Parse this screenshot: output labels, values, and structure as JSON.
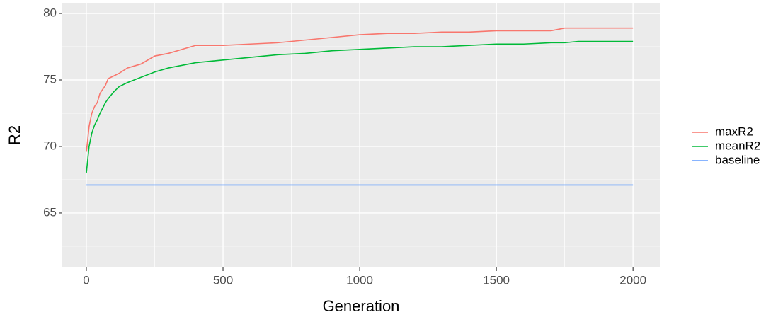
{
  "chart_data": {
    "type": "line",
    "x_label": "Generation",
    "y_label": "R2",
    "x": [
      0,
      5,
      10,
      20,
      30,
      40,
      50,
      60,
      70,
      80,
      100,
      120,
      150,
      200,
      250,
      300,
      350,
      400,
      500,
      600,
      700,
      800,
      900,
      1000,
      1100,
      1200,
      1300,
      1400,
      1500,
      1600,
      1700,
      1750,
      1800,
      1900,
      2000
    ],
    "series": [
      {
        "name": "maxR2",
        "color": "#F8766D",
        "values": [
          69.6,
          70.5,
          71.5,
          72.5,
          73.0,
          73.3,
          74.0,
          74.3,
          74.6,
          75.1,
          75.3,
          75.5,
          75.9,
          76.2,
          76.8,
          77.0,
          77.3,
          77.6,
          77.6,
          77.7,
          77.8,
          78.0,
          78.2,
          78.4,
          78.5,
          78.5,
          78.6,
          78.6,
          78.7,
          78.7,
          78.7,
          78.9,
          78.9,
          78.9,
          78.9
        ]
      },
      {
        "name": "meanR2",
        "color": "#00BA38",
        "values": [
          68.0,
          69.0,
          70.0,
          71.0,
          71.6,
          72.0,
          72.5,
          72.9,
          73.3,
          73.6,
          74.1,
          74.5,
          74.8,
          75.2,
          75.6,
          75.9,
          76.1,
          76.3,
          76.5,
          76.7,
          76.9,
          77.0,
          77.2,
          77.3,
          77.4,
          77.5,
          77.5,
          77.6,
          77.7,
          77.7,
          77.8,
          77.8,
          77.9,
          77.9,
          77.9
        ]
      },
      {
        "name": "baseline",
        "color": "#619CFF",
        "values": [
          67.1,
          67.1,
          67.1,
          67.1,
          67.1,
          67.1,
          67.1,
          67.1,
          67.1,
          67.1,
          67.1,
          67.1,
          67.1,
          67.1,
          67.1,
          67.1,
          67.1,
          67.1,
          67.1,
          67.1,
          67.1,
          67.1,
          67.1,
          67.1,
          67.1,
          67.1,
          67.1,
          67.1,
          67.1,
          67.1,
          67.1,
          67.1,
          67.1,
          67.1,
          67.1
        ]
      }
    ],
    "xlim": [
      -88,
      2098
    ],
    "ylim": [
      60.9,
      80.8
    ],
    "xticks": [
      0,
      500,
      1000,
      1500,
      2000
    ],
    "yticks": [
      65,
      70,
      75,
      80
    ],
    "xminorticks": [
      250,
      750,
      1250,
      1750
    ],
    "yminorticks": [
      62.5,
      67.5,
      72.5,
      77.5
    ],
    "grid": true,
    "legend": "right"
  }
}
